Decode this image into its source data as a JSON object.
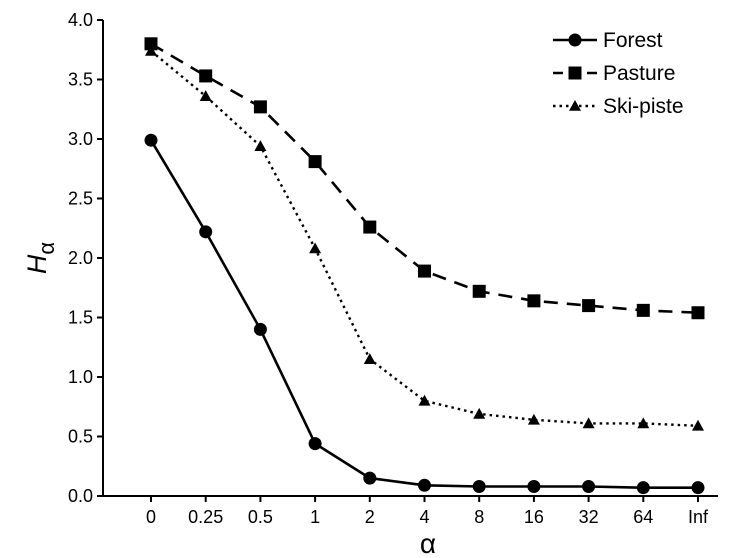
{
  "chart_data": {
    "type": "line",
    "title": "",
    "xlabel": "α",
    "ylabel": "H",
    "ylabel_subscript": "α",
    "categories": [
      "0",
      "0.25",
      "0.5",
      "1",
      "2",
      "4",
      "8",
      "16",
      "32",
      "64",
      "Inf"
    ],
    "ylim": [
      0,
      4
    ],
    "yticks": [
      "0.0",
      "0.5",
      "1.0",
      "1.5",
      "2.0",
      "2.5",
      "3.0",
      "3.5",
      "4.0"
    ],
    "grid": false,
    "legend_position": "top-right",
    "series": [
      {
        "name": "Forest",
        "marker": "circle",
        "line_style": "solid",
        "color": "#000000",
        "values": [
          2.99,
          2.22,
          1.4,
          0.44,
          0.15,
          0.09,
          0.08,
          0.08,
          0.08,
          0.07,
          0.07
        ]
      },
      {
        "name": "Pasture",
        "marker": "square",
        "line_style": "dashed",
        "color": "#000000",
        "values": [
          3.8,
          3.53,
          3.27,
          2.81,
          2.26,
          1.89,
          1.72,
          1.64,
          1.6,
          1.56,
          1.54
        ]
      },
      {
        "name": "Ski-piste",
        "marker": "triangle",
        "line_style": "dotted",
        "color": "#000000",
        "values": [
          3.74,
          3.36,
          2.94,
          2.08,
          1.15,
          0.8,
          0.69,
          0.64,
          0.61,
          0.61,
          0.59
        ]
      }
    ]
  }
}
